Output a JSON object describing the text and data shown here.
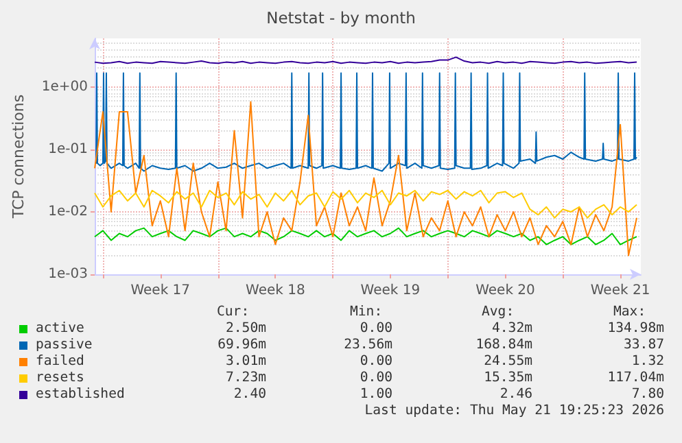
{
  "chart_data": {
    "type": "line",
    "title": "Netstat - by month",
    "ylabel": "TCP connections",
    "x": [
      "2026-04-19T12:00",
      "2026-04-20T00:00",
      "2026-04-20T12:00",
      "2026-04-21T00:00",
      "2026-04-21T12:00",
      "2026-04-22T00:00",
      "2026-04-22T12:00",
      "2026-04-23T00:00",
      "2026-04-23T12:00",
      "2026-04-24T00:00",
      "2026-04-24T12:00",
      "2026-04-25T00:00",
      "2026-04-25T12:00",
      "2026-04-26T00:00",
      "2026-04-26T12:00",
      "2026-04-27T00:00",
      "2026-04-27T12:00",
      "2026-04-28T00:00",
      "2026-04-28T12:00",
      "2026-04-29T00:00",
      "2026-04-29T12:00",
      "2026-04-30T00:00",
      "2026-04-30T12:00",
      "2026-05-01T00:00",
      "2026-05-01T12:00",
      "2026-05-02T00:00",
      "2026-05-02T12:00",
      "2026-05-03T00:00",
      "2026-05-03T12:00",
      "2026-05-04T00:00",
      "2026-05-04T12:00",
      "2026-05-05T00:00",
      "2026-05-05T12:00",
      "2026-05-06T00:00",
      "2026-05-06T12:00",
      "2026-05-07T00:00",
      "2026-05-07T12:00",
      "2026-05-08T00:00",
      "2026-05-08T12:00",
      "2026-05-09T00:00",
      "2026-05-09T12:00",
      "2026-05-10T00:00",
      "2026-05-10T12:00",
      "2026-05-11T00:00",
      "2026-05-11T12:00",
      "2026-05-12T00:00",
      "2026-05-12T12:00",
      "2026-05-13T00:00",
      "2026-05-13T12:00",
      "2026-05-14T00:00",
      "2026-05-14T12:00",
      "2026-05-15T00:00",
      "2026-05-15T12:00",
      "2026-05-16T00:00",
      "2026-05-16T12:00",
      "2026-05-17T00:00",
      "2026-05-17T12:00",
      "2026-05-18T00:00",
      "2026-05-18T12:00",
      "2026-05-19T00:00",
      "2026-05-19T12:00",
      "2026-05-20T00:00",
      "2026-05-20T12:00",
      "2026-05-21T00:00",
      "2026-05-21T12:00",
      "2026-05-22T00:00",
      "2026-05-22T12:00"
    ],
    "series": [
      {
        "name": "active",
        "color": "#00cc00",
        "values": [
          0.004,
          0.005,
          0.0035,
          0.0045,
          0.004,
          0.005,
          0.0055,
          0.004,
          0.0045,
          0.005,
          0.004,
          0.0035,
          0.005,
          0.0045,
          0.004,
          0.005,
          0.0055,
          0.004,
          0.0045,
          0.004,
          0.005,
          0.0045,
          0.0035,
          0.004,
          0.005,
          0.0045,
          0.004,
          0.005,
          0.004,
          0.0045,
          0.0035,
          0.005,
          0.004,
          0.0045,
          0.005,
          0.004,
          0.0045,
          0.0055,
          0.004,
          0.0045,
          0.005,
          0.004,
          0.0045,
          0.005,
          0.0045,
          0.004,
          0.005,
          0.0045,
          0.004,
          0.005,
          0.0045,
          0.004,
          0.0045,
          0.0035,
          0.004,
          0.003,
          0.0035,
          0.004,
          0.003,
          0.0035,
          0.004,
          0.003,
          0.0035,
          0.0045,
          0.003,
          0.0035,
          0.004
        ]
      },
      {
        "name": "passive",
        "color": "#0066b3",
        "x": [
          "2026-04-19T12:00",
          "2026-04-19T14:00",
          "2026-04-19T15:00",
          "2026-04-19T16:00",
          "2026-04-19T20:00",
          "2026-04-20T00:00",
          "2026-04-20T01:00",
          "2026-04-20T02:00",
          "2026-04-20T04:00",
          "2026-04-20T05:00",
          "2026-04-20T06:00",
          "2026-04-20T12:00",
          "2026-04-21T00:00",
          "2026-04-21T05:00",
          "2026-04-21T06:00",
          "2026-04-21T07:00",
          "2026-04-21T12:00",
          "2026-04-22T00:00",
          "2026-04-22T05:00",
          "2026-04-22T06:00",
          "2026-04-22T07:00",
          "2026-04-22T12:00",
          "2026-04-23T00:00",
          "2026-04-23T12:00",
          "2026-04-24T00:00",
          "2026-04-24T10:00",
          "2026-04-24T11:00",
          "2026-04-24T12:00",
          "2026-04-25T00:00",
          "2026-04-25T12:00",
          "2026-04-26T00:00",
          "2026-04-26T12:00",
          "2026-04-27T00:00",
          "2026-04-27T12:00",
          "2026-04-28T00:00",
          "2026-04-28T12:00",
          "2026-04-29T00:00",
          "2026-04-29T12:00",
          "2026-04-30T00:00",
          "2026-04-30T12:00",
          "2026-05-01T00:00",
          "2026-05-01T11:00",
          "2026-05-01T12:00",
          "2026-05-01T13:00",
          "2026-05-02T00:00",
          "2026-05-02T12:00",
          "2026-05-02T13:00",
          "2026-05-02T14:00",
          "2026-05-03T00:00",
          "2026-05-03T08:00",
          "2026-05-03T09:00",
          "2026-05-03T10:00",
          "2026-05-04T00:00",
          "2026-05-04T11:00",
          "2026-05-04T12:00",
          "2026-05-04T13:00",
          "2026-05-05T00:00",
          "2026-05-05T10:00",
          "2026-05-05T11:00",
          "2026-05-05T12:00",
          "2026-05-06T00:00",
          "2026-05-06T09:00",
          "2026-05-06T10:00",
          "2026-05-06T11:00",
          "2026-05-07T00:00",
          "2026-05-07T10:00",
          "2026-05-07T11:00",
          "2026-05-07T12:00",
          "2026-05-08T00:00",
          "2026-05-08T10:00",
          "2026-05-08T11:00",
          "2026-05-08T12:00",
          "2026-05-09T00:00",
          "2026-05-09T10:00",
          "2026-05-09T11:00",
          "2026-05-09T12:00",
          "2026-05-10T00:00",
          "2026-05-10T11:00",
          "2026-05-10T12:00",
          "2026-05-10T13:00",
          "2026-05-11T00:00",
          "2026-05-11T10:00",
          "2026-05-11T11:00",
          "2026-05-11T12:00",
          "2026-05-12T00:00",
          "2026-05-12T09:00",
          "2026-05-12T10:00",
          "2026-05-12T11:00",
          "2026-05-13T00:00",
          "2026-05-13T09:00",
          "2026-05-13T10:00",
          "2026-05-13T11:00",
          "2026-05-14T00:00",
          "2026-05-14T08:00",
          "2026-05-14T09:00",
          "2026-05-14T10:00",
          "2026-05-15T00:00",
          "2026-05-15T08:00",
          "2026-05-15T09:00",
          "2026-05-15T10:00",
          "2026-05-16T00:00",
          "2026-05-16T08:00",
          "2026-05-16T09:00",
          "2026-05-16T10:00",
          "2026-05-17T00:00",
          "2026-05-17T12:00",
          "2026-05-18T00:00",
          "2026-05-18T12:00",
          "2026-05-19T00:00",
          "2026-05-19T07:00",
          "2026-05-19T08:00",
          "2026-05-19T09:00",
          "2026-05-20T00:00",
          "2026-05-20T10:00",
          "2026-05-20T11:00",
          "2026-05-20T12:00",
          "2026-05-21T00:00",
          "2026-05-21T08:00",
          "2026-05-21T09:00",
          "2026-05-21T10:00",
          "2026-05-22T00:00",
          "2026-05-22T08:00",
          "2026-05-22T09:00",
          "2026-05-22T10:00",
          "2026-05-22T12:00"
        ],
        "values": [
          0.06,
          0.06,
          1.67,
          0.06,
          0.055,
          0.06,
          1.67,
          0.06,
          0.065,
          1.67,
          0.06,
          0.05,
          0.06,
          0.055,
          1.67,
          0.055,
          0.05,
          0.06,
          0.05,
          1.67,
          0.05,
          0.045,
          0.055,
          0.05,
          0.048,
          0.05,
          1.67,
          0.05,
          0.055,
          0.045,
          0.05,
          0.06,
          0.05,
          0.052,
          0.06,
          0.05,
          0.055,
          0.06,
          0.05,
          0.055,
          0.06,
          0.05,
          1.67,
          0.05,
          0.055,
          0.05,
          1.67,
          0.055,
          0.05,
          0.055,
          1.67,
          0.05,
          0.055,
          0.05,
          1.67,
          0.05,
          0.048,
          0.05,
          1.67,
          0.05,
          0.055,
          0.05,
          1.67,
          0.05,
          0.045,
          0.06,
          1.67,
          0.05,
          0.06,
          0.055,
          1.67,
          0.05,
          0.06,
          0.05,
          1.67,
          0.055,
          0.05,
          0.055,
          1.67,
          0.05,
          0.048,
          0.05,
          1.67,
          0.055,
          0.05,
          0.05,
          1.67,
          0.048,
          0.05,
          0.055,
          1.67,
          0.05,
          0.06,
          0.055,
          1.67,
          0.06,
          0.05,
          0.06,
          1.67,
          0.065,
          0.07,
          0.06,
          0.19,
          0.065,
          0.075,
          0.08,
          0.07,
          0.09,
          0.075,
          0.07,
          1.67,
          0.07,
          0.065,
          0.07,
          0.125,
          0.07,
          0.065,
          0.07,
          1.67,
          0.07,
          0.065,
          0.07,
          1.67,
          0.07,
          0.075
        ]
      },
      {
        "name": "failed",
        "color": "#ff8000",
        "values": [
          0.05,
          0.4,
          0.01,
          0.4,
          0.4,
          0.02,
          0.08,
          0.006,
          0.015,
          0.004,
          0.05,
          0.005,
          0.06,
          0.01,
          0.004,
          0.03,
          0.005,
          0.2,
          0.008,
          0.58,
          0.004,
          0.01,
          0.003,
          0.008,
          0.005,
          0.03,
          0.35,
          0.006,
          0.012,
          0.004,
          0.02,
          0.006,
          0.012,
          0.005,
          0.035,
          0.006,
          0.015,
          0.08,
          0.005,
          0.02,
          0.004,
          0.008,
          0.005,
          0.015,
          0.004,
          0.01,
          0.006,
          0.012,
          0.004,
          0.009,
          0.005,
          0.01,
          0.004,
          0.008,
          0.003,
          0.006,
          0.004,
          0.007,
          0.003,
          0.012,
          0.004,
          0.009,
          0.005,
          0.012,
          0.25,
          0.002,
          0.008
        ]
      },
      {
        "name": "resets",
        "color": "#ffcc00",
        "values": [
          0.02,
          0.012,
          0.018,
          0.022,
          0.015,
          0.02,
          0.012,
          0.022,
          0.018,
          0.014,
          0.021,
          0.016,
          0.02,
          0.012,
          0.022,
          0.017,
          0.02,
          0.013,
          0.021,
          0.016,
          0.019,
          0.012,
          0.02,
          0.015,
          0.022,
          0.013,
          0.018,
          0.02,
          0.012,
          0.021,
          0.016,
          0.022,
          0.014,
          0.02,
          0.017,
          0.022,
          0.013,
          0.02,
          0.018,
          0.022,
          0.015,
          0.021,
          0.019,
          0.022,
          0.016,
          0.021,
          0.018,
          0.022,
          0.014,
          0.02,
          0.021,
          0.017,
          0.02,
          0.011,
          0.009,
          0.012,
          0.008,
          0.011,
          0.01,
          0.012,
          0.008,
          0.011,
          0.013,
          0.009,
          0.012,
          0.01,
          0.013
        ]
      },
      {
        "name": "established",
        "color": "#330099",
        "values": [
          2.5,
          2.4,
          2.45,
          2.55,
          2.4,
          2.5,
          2.45,
          2.4,
          2.55,
          2.5,
          2.45,
          2.4,
          2.5,
          2.6,
          2.45,
          2.4,
          2.5,
          2.45,
          2.55,
          2.4,
          2.5,
          2.45,
          2.4,
          2.5,
          2.55,
          2.45,
          2.4,
          2.5,
          2.45,
          2.55,
          2.4,
          2.5,
          2.45,
          2.4,
          2.5,
          2.45,
          2.55,
          2.4,
          2.5,
          2.45,
          2.5,
          2.55,
          2.7,
          2.7,
          3.0,
          2.6,
          2.45,
          2.5,
          2.4,
          2.55,
          2.45,
          2.5,
          2.4,
          2.55,
          2.5,
          2.45,
          2.4,
          2.5,
          2.55,
          2.45,
          2.5,
          2.4,
          2.45,
          2.5,
          2.55,
          2.45,
          2.5
        ]
      }
    ],
    "xlim": [
      "2026-04-19T12:00",
      "2026-05-22T18:00"
    ],
    "xticks": [
      {
        "value": "2026-04-20T00:00",
        "label": null
      },
      {
        "value": "2026-04-23T12:00",
        "label": "Week 17"
      },
      {
        "value": "2026-04-27T00:00",
        "label": null
      },
      {
        "value": "2026-04-30T12:00",
        "label": "Week 18"
      },
      {
        "value": "2026-05-04T00:00",
        "label": null
      },
      {
        "value": "2026-05-07T12:00",
        "label": "Week 19"
      },
      {
        "value": "2026-05-11T00:00",
        "label": null
      },
      {
        "value": "2026-05-14T12:00",
        "label": "Week 20"
      },
      {
        "value": "2026-05-18T00:00",
        "label": null
      },
      {
        "value": "2026-05-21T12:00",
        "label": "Week 21"
      }
    ],
    "ylim": [
      0.001,
      6
    ],
    "yticks": [
      {
        "value": 0.001,
        "label": "1e-03"
      },
      {
        "value": 0.01,
        "label": "1e-02"
      },
      {
        "value": 0.1,
        "label": "1e-01"
      },
      {
        "value": 1,
        "label": "1e+00"
      }
    ],
    "log": true,
    "grid": true,
    "legend": "bottom left",
    "marker": "none",
    "line_style": "solid",
    "annotations": [
      "Cur:",
      "Min:",
      "Avg:",
      "Max:",
      "2.50m",
      "0.00",
      "4.32m",
      "134.98m",
      "69.96m",
      "23.56m",
      "168.84m",
      "33.87",
      "3.01m",
      "0.00",
      "24.55m",
      "1.32",
      "7.23m",
      "0.00",
      "15.35m",
      "117.04m",
      "2.40",
      "1.00",
      "2.46",
      "7.80",
      "Last update: Thu May 21 19:25:23 2026"
    ]
  }
}
